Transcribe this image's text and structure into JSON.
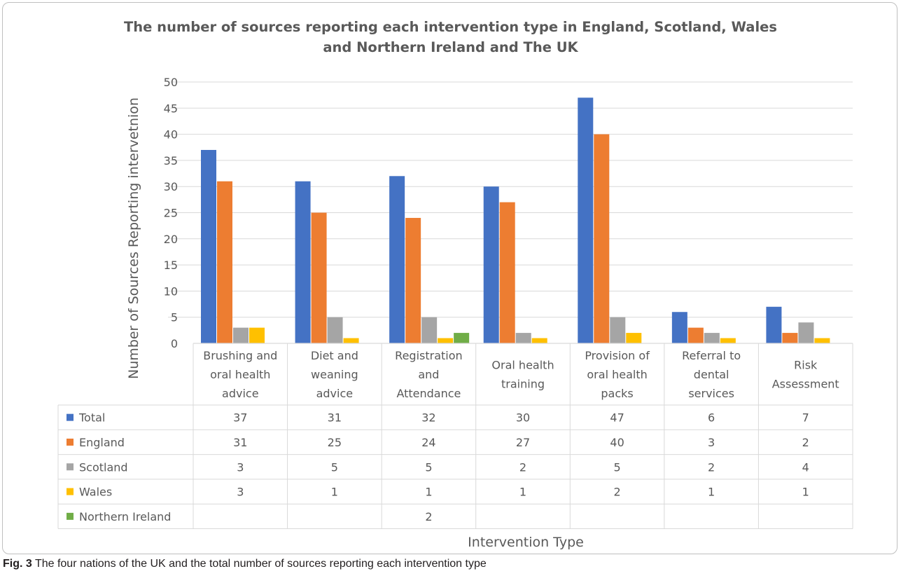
{
  "chart_data": {
    "type": "bar",
    "title_lines": [
      "The number of sources reporting each intervention type in England, Scotland, Wales",
      "and Northern Ireland and The UK"
    ],
    "xlabel": "Intervention Type",
    "ylabel": "Number of Sources Reporting intervetnion",
    "ylim": [
      0,
      50
    ],
    "yticks": [
      "0",
      "5",
      "10",
      "15",
      "20",
      "25",
      "30",
      "35",
      "40",
      "45",
      "50"
    ],
    "grid": true,
    "legend": "data-table",
    "categories": [
      [
        "Brushing and",
        "oral health",
        "advice"
      ],
      [
        "Diet and",
        "weaning",
        "advice"
      ],
      [
        "Registration",
        "and",
        "Attendance"
      ],
      [
        "Oral health",
        "training"
      ],
      [
        "Provision of",
        "oral health",
        "packs"
      ],
      [
        "Referral to",
        "dental",
        "services"
      ],
      [
        "Risk",
        "Assessment"
      ]
    ],
    "series": [
      {
        "name": "Total",
        "color": "#4472c4",
        "values": [
          37,
          31,
          32,
          30,
          47,
          6,
          7
        ]
      },
      {
        "name": "England",
        "color": "#ed7d31",
        "values": [
          31,
          25,
          24,
          27,
          40,
          3,
          2
        ]
      },
      {
        "name": "Scotland",
        "color": "#a5a5a5",
        "values": [
          3,
          5,
          5,
          2,
          5,
          2,
          4
        ]
      },
      {
        "name": "Wales",
        "color": "#ffc000",
        "values": [
          3,
          1,
          1,
          1,
          2,
          1,
          1
        ]
      },
      {
        "name": "Northern Ireland",
        "color": "#70ad47",
        "values": [
          null,
          null,
          2,
          null,
          null,
          null,
          null
        ]
      }
    ]
  },
  "caption": {
    "label": "Fig. 3",
    "text": "The four nations of the UK and the total number of sources reporting each intervention type"
  }
}
